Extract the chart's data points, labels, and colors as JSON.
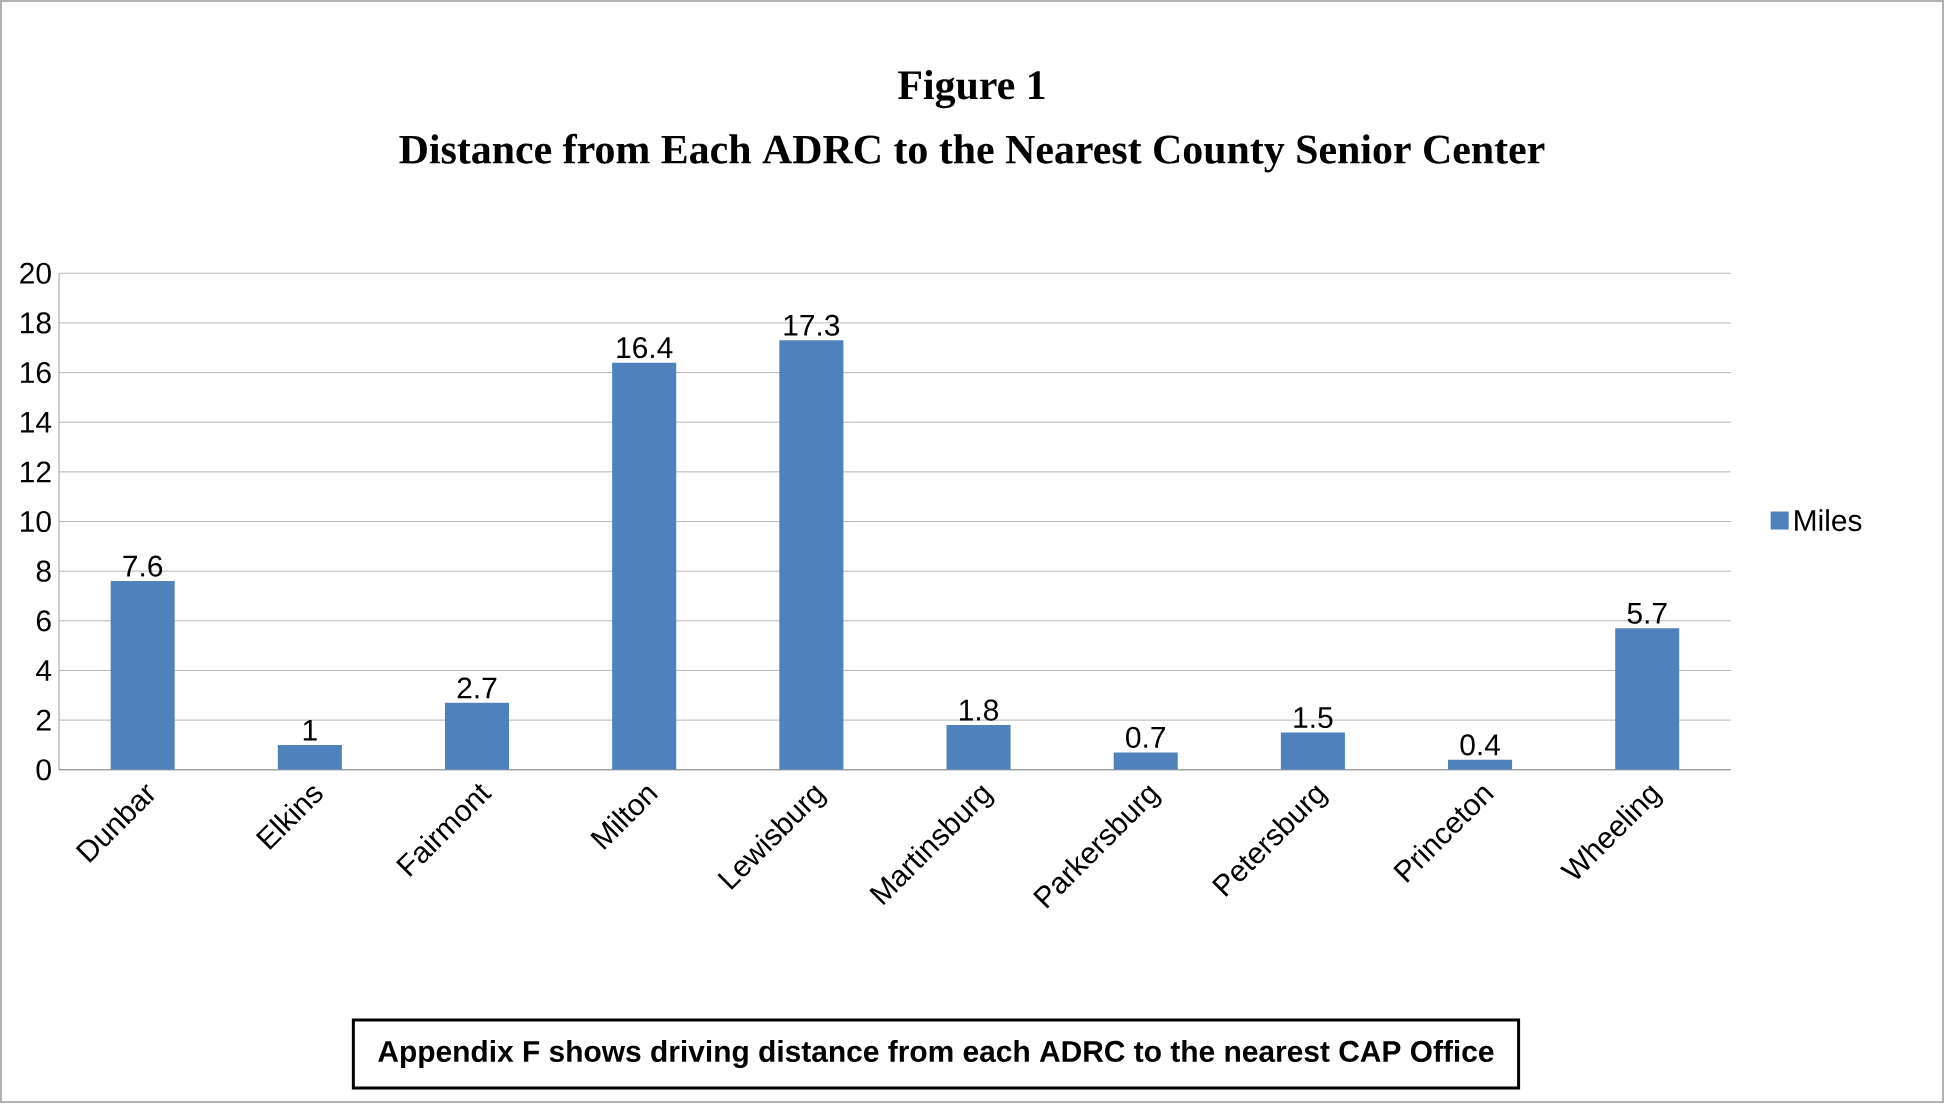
{
  "chart_data": {
    "type": "bar",
    "title": "Figure 1",
    "subtitle": "Distance from Each ADRC to the Nearest County Senior Center",
    "categories": [
      "Dunbar",
      "Elkins",
      "Fairmont",
      "Milton",
      "Lewisburg",
      "Martinsburg",
      "Parkersburg",
      "Petersburg",
      "Princeton",
      "Wheeling"
    ],
    "series": [
      {
        "name": "Miles",
        "color": "#4f81bd",
        "values": [
          7.6,
          1,
          2.7,
          16.4,
          17.3,
          1.8,
          0.7,
          1.5,
          0.4,
          5.7
        ]
      }
    ],
    "ylim": [
      0,
      20
    ],
    "yticks": [
      0,
      2,
      4,
      6,
      8,
      10,
      12,
      14,
      16,
      18,
      20
    ],
    "grid": "y",
    "legend": "right",
    "data_labels": true,
    "annotations": [
      "Appendix F shows driving distance from each ADRC to the nearest CAP Office"
    ]
  }
}
